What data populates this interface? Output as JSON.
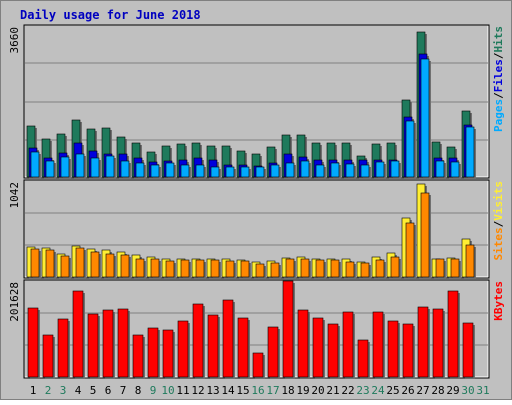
{
  "title": "Daily usage for June 2018",
  "colors": {
    "background": "#C0C0C0",
    "title": "#0000C0",
    "pages": "#00AAFF",
    "files": "#0000DD",
    "hits": "#1F7A5C",
    "visits": "#FFEE33",
    "sites": "#FF8800",
    "kbytes": "#FF0000",
    "weekend_label": "#1F7A5C",
    "weekday_label": "#000000"
  },
  "chart_data": [
    {
      "type": "bar",
      "panel": "hits-files-pages",
      "ymax_label": "3660",
      "ymax": 3660,
      "legend": [
        "Pages",
        "/",
        "Files",
        "/",
        "Hits"
      ],
      "categories": [
        "1",
        "2",
        "3",
        "4",
        "5",
        "6",
        "7",
        "8",
        "9",
        "10",
        "11",
        "12",
        "13",
        "14",
        "15",
        "16",
        "17",
        "18",
        "19",
        "20",
        "21",
        "22",
        "23",
        "24",
        "25",
        "26",
        "27",
        "28",
        "29",
        "30",
        "31"
      ],
      "series": [
        {
          "name": "Hits",
          "values": [
            1230,
            930,
            1040,
            1390,
            1170,
            1180,
            970,
            820,
            600,
            760,
            800,
            830,
            760,
            760,
            640,
            550,
            730,
            1010,
            1020,
            820,
            830,
            830,
            510,
            810,
            820,
            1870,
            3520,
            860,
            720,
            1590,
            0
          ]
        },
        {
          "name": "Files",
          "values": [
            710,
            460,
            580,
            820,
            620,
            560,
            560,
            450,
            370,
            390,
            400,
            450,
            400,
            300,
            290,
            270,
            340,
            550,
            490,
            400,
            410,
            410,
            410,
            400,
            420,
            1460,
            2990,
            450,
            450,
            1250,
            0
          ]
        },
        {
          "name": "Pages",
          "values": [
            610,
            380,
            480,
            560,
            470,
            500,
            380,
            330,
            280,
            330,
            290,
            300,
            250,
            250,
            240,
            250,
            290,
            330,
            390,
            300,
            330,
            310,
            290,
            360,
            390,
            1350,
            2870,
            380,
            370,
            1210,
            0
          ]
        }
      ]
    },
    {
      "type": "bar",
      "panel": "visits-sites",
      "ymax_label": "1042",
      "ymax": 1042,
      "legend": [
        "Sites",
        "/",
        "Visits"
      ],
      "categories": [
        "1",
        "2",
        "3",
        "4",
        "5",
        "6",
        "7",
        "8",
        "9",
        "10",
        "11",
        "12",
        "13",
        "14",
        "15",
        "16",
        "17",
        "18",
        "19",
        "20",
        "21",
        "22",
        "23",
        "24",
        "25",
        "26",
        "27",
        "28",
        "29",
        "30",
        "31"
      ],
      "series": [
        {
          "name": "Visits",
          "values": [
            330,
            320,
            250,
            340,
            300,
            290,
            270,
            240,
            220,
            190,
            190,
            200,
            200,
            190,
            180,
            160,
            170,
            210,
            220,
            200,
            200,
            190,
            160,
            220,
            260,
            640,
            1010,
            200,
            210,
            410,
            0
          ]
        },
        {
          "name": "Sites",
          "values": [
            300,
            290,
            230,
            310,
            270,
            250,
            240,
            200,
            200,
            170,
            180,
            180,
            180,
            170,
            170,
            140,
            150,
            190,
            190,
            180,
            180,
            160,
            150,
            180,
            220,
            590,
            910,
            190,
            190,
            350,
            0
          ]
        }
      ]
    },
    {
      "type": "bar",
      "panel": "kbytes",
      "ymax_label": "201628",
      "ymax": 201628,
      "legend": [
        "KBytes"
      ],
      "categories": [
        "1",
        "2",
        "3",
        "4",
        "5",
        "6",
        "7",
        "8",
        "9",
        "10",
        "11",
        "12",
        "13",
        "14",
        "15",
        "16",
        "17",
        "18",
        "19",
        "20",
        "21",
        "22",
        "23",
        "24",
        "25",
        "26",
        "27",
        "28",
        "29",
        "30",
        "31"
      ],
      "series": [
        {
          "name": "KBytes",
          "values": [
            145000,
            88000,
            122000,
            180000,
            133000,
            140000,
            143000,
            88000,
            103000,
            98000,
            118000,
            154000,
            130000,
            161000,
            123000,
            50000,
            104000,
            201628,
            140000,
            123000,
            112000,
            137000,
            78000,
            136000,
            118000,
            111000,
            148000,
            143000,
            180000,
            113000,
            0
          ]
        }
      ]
    }
  ],
  "day_labels": [
    {
      "text": "1",
      "weekend": false
    },
    {
      "text": "2",
      "weekend": true
    },
    {
      "text": "3",
      "weekend": true
    },
    {
      "text": "4",
      "weekend": false
    },
    {
      "text": "5",
      "weekend": false
    },
    {
      "text": "6",
      "weekend": false
    },
    {
      "text": "7",
      "weekend": false
    },
    {
      "text": "8",
      "weekend": false
    },
    {
      "text": "9",
      "weekend": true
    },
    {
      "text": "10",
      "weekend": true
    },
    {
      "text": "11",
      "weekend": false
    },
    {
      "text": "12",
      "weekend": false
    },
    {
      "text": "13",
      "weekend": false
    },
    {
      "text": "14",
      "weekend": false
    },
    {
      "text": "15",
      "weekend": false
    },
    {
      "text": "16",
      "weekend": true
    },
    {
      "text": "17",
      "weekend": true
    },
    {
      "text": "18",
      "weekend": false
    },
    {
      "text": "19",
      "weekend": false
    },
    {
      "text": "20",
      "weekend": false
    },
    {
      "text": "21",
      "weekend": false
    },
    {
      "text": "22",
      "weekend": false
    },
    {
      "text": "23",
      "weekend": true
    },
    {
      "text": "24",
      "weekend": true
    },
    {
      "text": "25",
      "weekend": false
    },
    {
      "text": "26",
      "weekend": false
    },
    {
      "text": "27",
      "weekend": false
    },
    {
      "text": "28",
      "weekend": false
    },
    {
      "text": "29",
      "weekend": false
    },
    {
      "text": "30",
      "weekend": true
    },
    {
      "text": "31",
      "weekend": true
    }
  ]
}
